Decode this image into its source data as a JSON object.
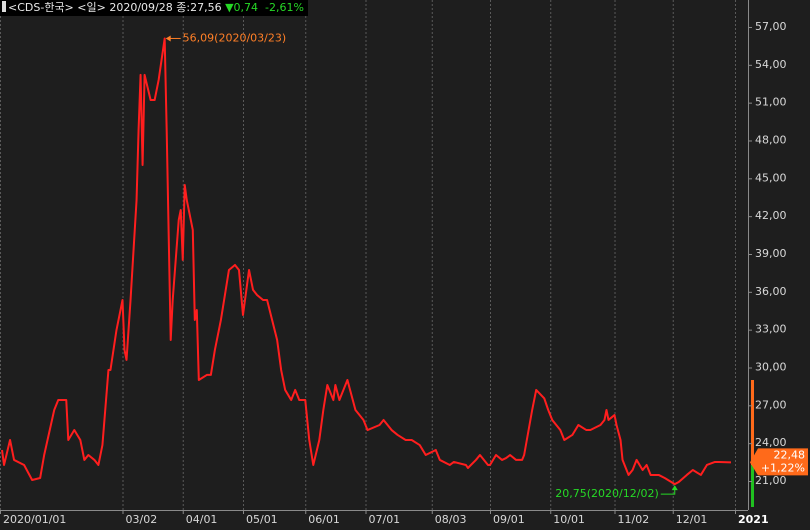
{
  "chart_data": {
    "type": "line",
    "header": {
      "name": "<CDS-한국>",
      "period": "<일>",
      "date": "2020/09/28",
      "close": "종:27,56",
      "change": "▼0,74",
      "change_pct": "-2,61%"
    },
    "x": [
      "2020/01/02",
      "2020/01/03",
      "2020/01/06",
      "2020/01/08",
      "2020/01/13",
      "2020/01/17",
      "2020/01/21",
      "2020/01/23",
      "2020/01/28",
      "2020/01/30",
      "2020/02/03",
      "2020/02/04",
      "2020/02/07",
      "2020/02/10",
      "2020/02/12",
      "2020/02/14",
      "2020/02/17",
      "2020/02/19",
      "2020/02/21",
      "2020/02/24",
      "2020/02/25",
      "2020/02/28",
      "2020/03/02",
      "2020/03/03",
      "2020/03/04",
      "2020/03/06",
      "2020/03/09",
      "2020/03/10",
      "2020/03/11",
      "2020/03/12",
      "2020/03/13",
      "2020/03/16",
      "2020/03/18",
      "2020/03/20",
      "2020/03/23",
      "2020/03/24",
      "2020/03/26",
      "2020/03/27",
      "2020/03/30",
      "2020/03/31",
      "2020/04/01",
      "2020/04/02",
      "2020/04/03",
      "2020/04/06",
      "2020/04/07",
      "2020/04/08",
      "2020/04/09",
      "2020/04/13",
      "2020/04/15",
      "2020/04/17",
      "2020/04/20",
      "2020/04/24",
      "2020/04/27",
      "2020/04/29",
      "2020/05/01",
      "2020/05/04",
      "2020/05/06",
      "2020/05/08",
      "2020/05/11",
      "2020/05/13",
      "2020/05/18",
      "2020/05/20",
      "2020/05/22",
      "2020/05/25",
      "2020/05/27",
      "2020/05/29",
      "2020/06/01",
      "2020/06/03",
      "2020/06/05",
      "2020/06/08",
      "2020/06/10",
      "2020/06/12",
      "2020/06/15",
      "2020/06/16",
      "2020/06/18",
      "2020/06/22",
      "2020/06/24",
      "2020/06/26",
      "2020/06/30",
      "2020/07/02",
      "2020/07/08",
      "2020/07/10",
      "2020/07/14",
      "2020/07/17",
      "2020/07/21",
      "2020/07/24",
      "2020/07/28",
      "2020/07/31",
      "2020/08/05",
      "2020/08/07",
      "2020/08/12",
      "2020/08/14",
      "2020/08/20",
      "2020/08/21",
      "2020/08/25",
      "2020/08/27",
      "2020/08/31",
      "2020/09/01",
      "2020/09/04",
      "2020/09/07",
      "2020/09/09",
      "2020/09/11",
      "2020/09/14",
      "2020/09/17",
      "2020/09/18",
      "2020/09/22",
      "2020/09/24",
      "2020/09/28",
      "2020/09/30",
      "2020/10/02",
      "2020/10/06",
      "2020/10/08",
      "2020/10/12",
      "2020/10/15",
      "2020/10/19",
      "2020/10/21",
      "2020/10/26",
      "2020/10/28",
      "2020/10/29",
      "2020/10/30",
      "2020/11/02",
      "2020/11/03",
      "2020/11/05",
      "2020/11/06",
      "2020/11/09",
      "2020/11/11",
      "2020/11/13",
      "2020/11/16",
      "2020/11/18",
      "2020/11/20",
      "2020/11/24",
      "2020/11/27",
      "2020/12/02",
      "2020/12/04",
      "2020/12/08",
      "2020/12/11",
      "2020/12/15",
      "2020/12/18",
      "2020/12/22",
      "2020/12/24",
      "2020/12/30"
    ],
    "series": [
      {
        "color": "#ff1e1e",
        "values": [
          23.46,
          22.27,
          24.25,
          22.67,
          22.27,
          21.08,
          21.24,
          23.06,
          26.63,
          27.42,
          27.42,
          24.25,
          25.04,
          24.25,
          22.67,
          23.06,
          22.67,
          22.27,
          23.85,
          29.8,
          29.8,
          32.97,
          35.35,
          31.39,
          30.6,
          35.35,
          43.28,
          48.83,
          53.2,
          46.06,
          53.2,
          51.21,
          51.21,
          52.8,
          56.09,
          48.83,
          32.18,
          35.35,
          41.7,
          42.49,
          38.53,
          44.47,
          43.28,
          40.91,
          33.77,
          34.56,
          29.01,
          29.41,
          29.41,
          31.39,
          33.77,
          37.73,
          38.13,
          37.73,
          34.16,
          37.73,
          36.15,
          35.75,
          35.35,
          35.35,
          32.18,
          29.8,
          28.22,
          27.42,
          28.22,
          27.42,
          27.42,
          24.25,
          22.27,
          24.25,
          26.63,
          28.61,
          27.42,
          28.61,
          27.42,
          29.01,
          27.82,
          26.63,
          25.84,
          25.04,
          25.44,
          25.84,
          25.04,
          24.65,
          24.25,
          24.25,
          23.85,
          23.06,
          23.46,
          22.67,
          22.27,
          22.51,
          22.27,
          22.03,
          22.67,
          23.06,
          22.27,
          22.27,
          23.06,
          22.67,
          22.82,
          23.06,
          22.67,
          22.67,
          23.06,
          26.63,
          28.22,
          27.56,
          26.63,
          25.84,
          25.04,
          24.25,
          24.65,
          25.44,
          25.04,
          25.04,
          25.44,
          25.84,
          26.63,
          25.84,
          26.23,
          25.44,
          24.25,
          22.67,
          21.48,
          21.87,
          22.67,
          21.87,
          22.27,
          21.48,
          21.48,
          21.24,
          20.75,
          20.92,
          21.48,
          21.87,
          21.48,
          22.27,
          22.51,
          22.51,
          22.48
        ]
      }
    ],
    "xlim": [
      "2020/01/01",
      "2021/01/01"
    ],
    "xticks": [
      "2020/01/01",
      {
        "value": "2020/03/02",
        "label": "03/02"
      },
      {
        "value": "2020/04/01",
        "label": "04/01"
      },
      {
        "value": "2020/05/01",
        "label": "05/01"
      },
      {
        "value": "2020/06/01",
        "label": "06/01"
      },
      {
        "value": "2020/07/01",
        "label": "07/01"
      },
      {
        "value": "2020/08/03",
        "label": "08/03"
      },
      {
        "value": "2020/09/01",
        "label": "09/01"
      },
      {
        "value": "2020/10/01",
        "label": "10/01"
      },
      {
        "value": "2020/11/02",
        "label": "11/02"
      },
      {
        "value": "2020/12/01",
        "label": "12/01"
      },
      {
        "value": "2021/01/01",
        "label": "2021"
      }
    ],
    "ylim": [
      18.7,
      57.95
    ],
    "yticks": [
      {
        "value": 21,
        "label": "21,00"
      },
      {
        "value": 24,
        "label": "24,00"
      },
      {
        "value": 27,
        "label": "27,00"
      },
      {
        "value": 30,
        "label": "30,00"
      },
      {
        "value": 33,
        "label": "33,00"
      },
      {
        "value": 36,
        "label": "36,00"
      },
      {
        "value": 39,
        "label": "39,00"
      },
      {
        "value": 42,
        "label": "42,00"
      },
      {
        "value": 45,
        "label": "45,00"
      },
      {
        "value": 48,
        "label": "48,00"
      },
      {
        "value": 51,
        "label": "51,00"
      },
      {
        "value": 54,
        "label": "54,00"
      },
      {
        "value": 57,
        "label": "57,00"
      }
    ],
    "grid": "x",
    "annotations": [
      {
        "text": "56,09(2020/03/23)",
        "color": "#ff7f27"
      },
      {
        "text": "20,75(2020/12/02)",
        "color": "#26d926"
      }
    ],
    "price_tag": {
      "price": "22,48",
      "change": "+1,22%",
      "color": "#ff6a1a"
    }
  }
}
